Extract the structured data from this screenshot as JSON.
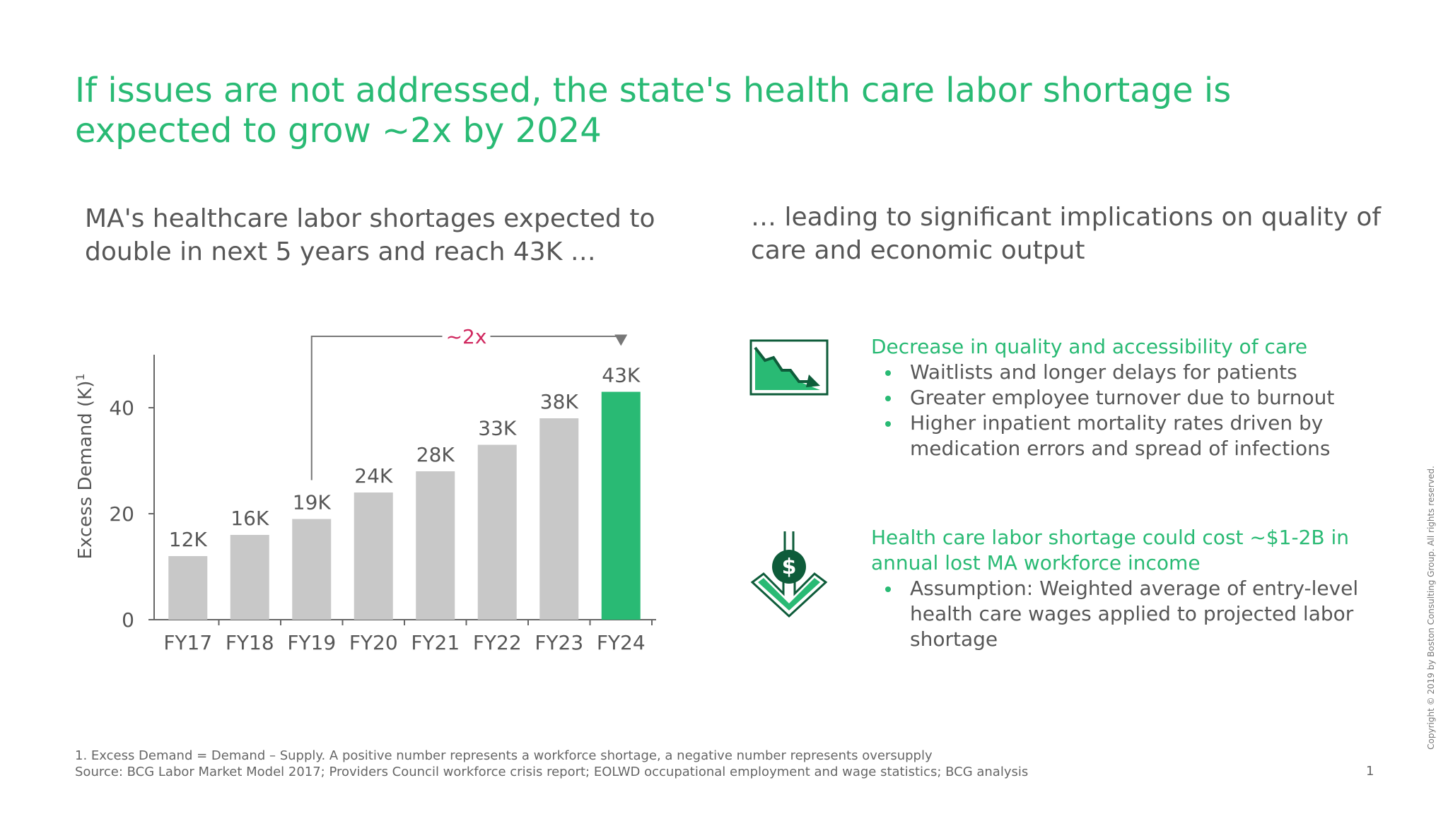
{
  "title": "If issues are not addressed, the state's health care labor shortage is expected to grow ~2x by 2024",
  "left_subtitle": "MA's healthcare labor shortages expected to double in next 5 years and reach 43K …",
  "right_subtitle": "… leading to significant implications on quality of care and economic output",
  "chart_data": {
    "type": "bar",
    "categories": [
      "FY17",
      "FY18",
      "FY19",
      "FY20",
      "FY21",
      "FY22",
      "FY23",
      "FY24"
    ],
    "values": [
      12,
      16,
      19,
      24,
      28,
      33,
      38,
      43
    ],
    "data_labels": [
      "12K",
      "16K",
      "19K",
      "24K",
      "28K",
      "33K",
      "38K",
      "43K"
    ],
    "ylabel": "Excess Demand (K)",
    "ylabel_superscript": "1",
    "yticks": [
      0,
      20,
      40
    ],
    "ylim": [
      0,
      50
    ],
    "bar_color": "#c8c8c8",
    "highlight_index": 7,
    "highlight_color": "#29ba74",
    "annotation": {
      "text": "~2x",
      "from_category": "FY19",
      "to_category": "FY24",
      "color": "#d0285f"
    }
  },
  "implications": [
    {
      "icon": "chart-decline-icon",
      "heading": "Decrease in quality and accessibility of care",
      "bullets": [
        "Waitlists and longer delays for patients",
        "Greater employee turnover due to burnout",
        "Higher inpatient mortality rates driven by medication errors and spread of infections"
      ]
    },
    {
      "icon": "dollar-decrease-icon",
      "heading": "Health care labor shortage could cost ~$1-2B in annual lost MA workforce income",
      "bullets": [
        "Assumption: Weighted average of entry-level health care wages applied to projected labor shortage"
      ]
    }
  ],
  "footnote": "1. Excess Demand = Demand – Supply. A positive number represents a workforce shortage, a negative number represents oversupply",
  "source": "Source: BCG Labor Market Model 2017; Providers Council workforce crisis report; EOLWD occupational employment and wage statistics; BCG analysis",
  "page_number": "1",
  "copyright": "Copyright © 2019 by Boston Consulting Group. All rights reserved.",
  "colors": {
    "accent": "#29ba74",
    "text": "#575757",
    "annotation": "#d0285f",
    "dark_green": "#0e5c3a"
  }
}
